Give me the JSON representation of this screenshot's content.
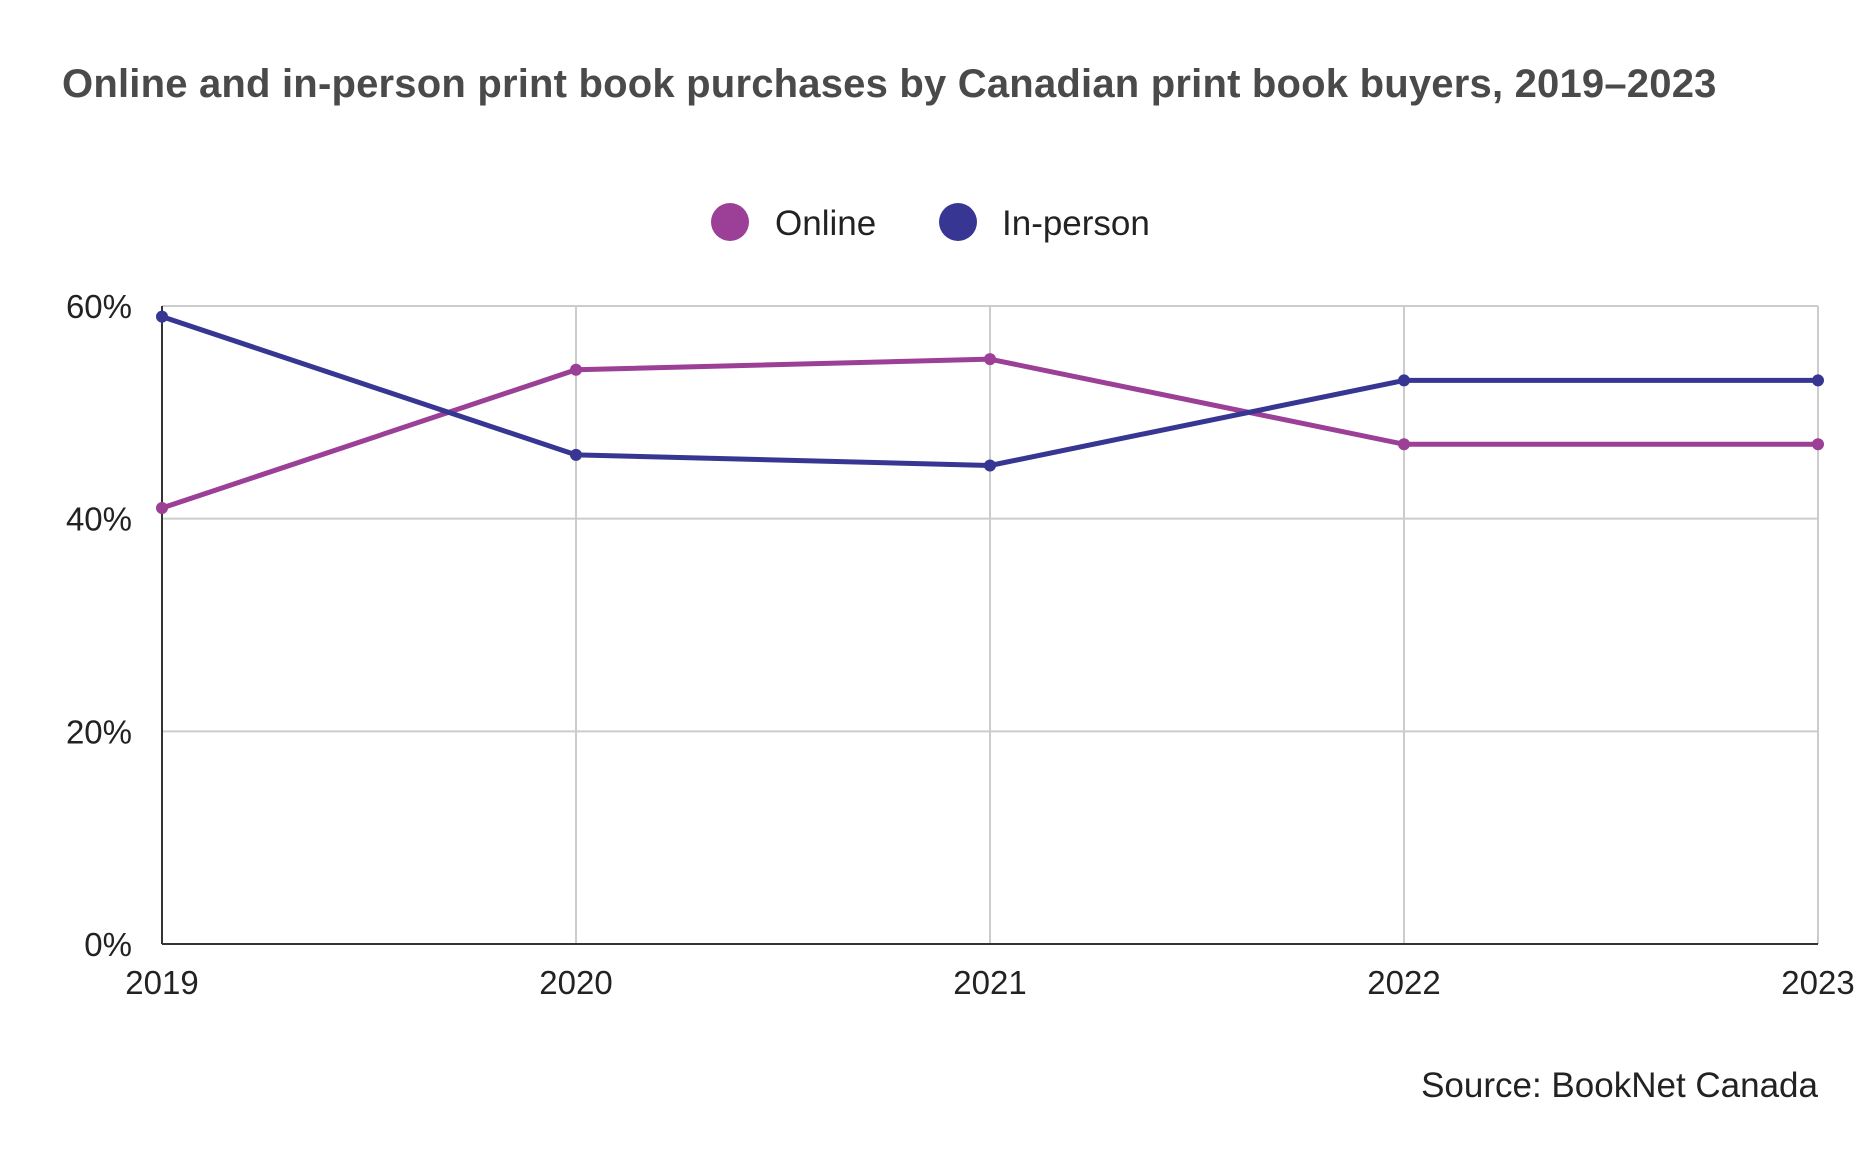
{
  "chart_data": {
    "type": "line",
    "title": "Online and in-person print book purchases by Canadian print book buyers, 2019–2023",
    "x": [
      "2019",
      "2020",
      "2021",
      "2022",
      "2023"
    ],
    "series": [
      {
        "name": "Online",
        "color": "#9b3f97",
        "values": [
          41,
          54,
          55,
          47,
          47
        ]
      },
      {
        "name": "In-person",
        "color": "#373693",
        "values": [
          59,
          46,
          45,
          53,
          53
        ]
      }
    ],
    "ylim": [
      0,
      60
    ],
    "yticks": [
      0,
      20,
      40,
      60
    ],
    "ytick_labels": [
      "0%",
      "20%",
      "40%",
      "60%"
    ],
    "grid": true,
    "legend_position": "top-center",
    "source": "Source: BookNet Canada"
  }
}
